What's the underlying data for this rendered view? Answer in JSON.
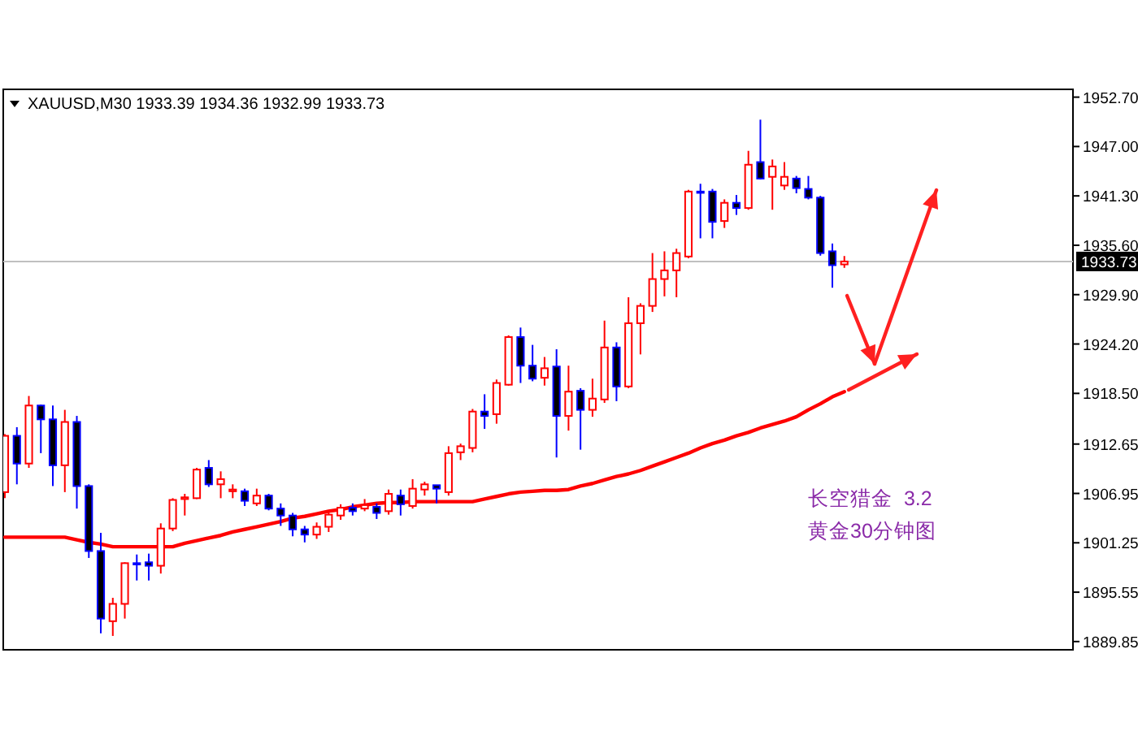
{
  "chart_data": {
    "type": "candlestick",
    "title": "XAUUSD,M30 1933.39 1934.36 1932.99 1933.73",
    "categories": [
      null,
      null,
      null,
      null,
      null,
      null,
      null,
      null,
      null,
      null,
      null,
      null,
      null,
      null,
      null,
      null,
      null,
      null,
      null,
      null,
      null,
      null,
      null,
      null,
      null,
      null,
      null,
      null,
      null,
      null,
      null,
      null,
      null,
      null,
      null,
      null,
      null,
      null,
      null,
      null,
      null,
      null,
      null,
      null,
      null,
      null,
      null,
      null,
      null,
      null,
      null,
      null,
      null,
      null,
      null,
      null,
      null,
      null,
      null,
      null,
      null,
      null,
      null,
      null,
      null,
      null,
      null,
      null,
      null,
      null,
      null
    ],
    "ohlc": [
      [
        1907.1,
        1913.8,
        1906.4,
        1913.6
      ],
      [
        1913.6,
        1914.6,
        1908.0,
        1910.4
      ],
      [
        1910.4,
        1918.2,
        1909.9,
        1917.1
      ],
      [
        1917.1,
        1917.2,
        1911.6,
        1915.5
      ],
      [
        1915.5,
        1917.1,
        1907.8,
        1910.2
      ],
      [
        1910.2,
        1916.6,
        1907.1,
        1915.2
      ],
      [
        1915.2,
        1915.9,
        1905.2,
        1907.8
      ],
      [
        1907.8,
        1908.0,
        1899.5,
        1900.3
      ],
      [
        1900.3,
        1902.4,
        1890.8,
        1892.5
      ],
      [
        1892.2,
        1894.9,
        1890.5,
        1894.2
      ],
      [
        1894.2,
        1899.0,
        1892.5,
        1898.9
      ],
      [
        1898.9,
        1899.9,
        1896.9,
        1898.8
      ],
      [
        1899.0,
        1900.0,
        1896.9,
        1898.6
      ],
      [
        1898.6,
        1903.5,
        1897.7,
        1902.9
      ],
      [
        1902.9,
        1906.4,
        1902.6,
        1906.2
      ],
      [
        1906.3,
        1906.9,
        1904.4,
        1906.5
      ],
      [
        1906.4,
        1909.9,
        1906.3,
        1909.7
      ],
      [
        1909.9,
        1910.8,
        1907.7,
        1908.0
      ],
      [
        1908.0,
        1909.5,
        1906.4,
        1908.6
      ],
      [
        1907.2,
        1908.0,
        1906.4,
        1907.4
      ],
      [
        1907.2,
        1907.5,
        1905.5,
        1906.1
      ],
      [
        1905.8,
        1907.5,
        1905.5,
        1906.7
      ],
      [
        1906.7,
        1906.9,
        1905.0,
        1905.2
      ],
      [
        1905.2,
        1905.8,
        1903.2,
        1904.4
      ],
      [
        1904.4,
        1904.7,
        1902.0,
        1902.8
      ],
      [
        1902.8,
        1903.2,
        1901.3,
        1902.2
      ],
      [
        1902.2,
        1903.6,
        1901.7,
        1903.1
      ],
      [
        1903.1,
        1904.9,
        1902.5,
        1904.5
      ],
      [
        1904.4,
        1905.7,
        1903.9,
        1905.3
      ],
      [
        1905.3,
        1905.8,
        1904.4,
        1904.9
      ],
      [
        1905.2,
        1906.3,
        1904.9,
        1905.6
      ],
      [
        1905.4,
        1905.8,
        1904.0,
        1904.7
      ],
      [
        1904.9,
        1907.4,
        1904.5,
        1906.9
      ],
      [
        1906.7,
        1907.4,
        1904.4,
        1905.7
      ],
      [
        1905.5,
        1908.6,
        1905.2,
        1907.5
      ],
      [
        1907.4,
        1908.3,
        1906.7,
        1908.0
      ],
      [
        1907.9,
        1907.9,
        1905.8,
        1907.5
      ],
      [
        1907.1,
        1912.4,
        1906.7,
        1911.6
      ],
      [
        1911.7,
        1912.7,
        1910.8,
        1912.4
      ],
      [
        1912.2,
        1916.7,
        1911.7,
        1916.4
      ],
      [
        1916.4,
        1918.4,
        1914.4,
        1915.9
      ],
      [
        1916.1,
        1920.1,
        1915.0,
        1919.7
      ],
      [
        1919.5,
        1925.2,
        1919.4,
        1925.0
      ],
      [
        1925.0,
        1926.1,
        1919.7,
        1921.7
      ],
      [
        1921.7,
        1924.1,
        1919.9,
        1920.2
      ],
      [
        1920.3,
        1922.7,
        1919.4,
        1921.4
      ],
      [
        1921.6,
        1923.6,
        1911.1,
        1915.9
      ],
      [
        1915.9,
        1921.7,
        1914.2,
        1918.7
      ],
      [
        1918.8,
        1919.1,
        1912.0,
        1916.6
      ],
      [
        1916.6,
        1920.2,
        1915.8,
        1917.9
      ],
      [
        1917.8,
        1926.9,
        1917.4,
        1923.8
      ],
      [
        1923.8,
        1924.4,
        1917.6,
        1919.3
      ],
      [
        1919.3,
        1929.6,
        1919.1,
        1926.6
      ],
      [
        1926.6,
        1928.9,
        1923.0,
        1928.6
      ],
      [
        1928.6,
        1934.7,
        1927.9,
        1931.7
      ],
      [
        1931.7,
        1934.9,
        1929.7,
        1932.7
      ],
      [
        1932.7,
        1935.2,
        1929.6,
        1934.7
      ],
      [
        1934.3,
        1942.0,
        1934.1,
        1941.8
      ],
      [
        1941.8,
        1942.7,
        1936.4,
        1941.7
      ],
      [
        1941.8,
        1942.1,
        1936.4,
        1938.3
      ],
      [
        1938.4,
        1940.9,
        1937.6,
        1940.5
      ],
      [
        1940.5,
        1941.4,
        1939.1,
        1939.9
      ],
      [
        1939.9,
        1946.5,
        1939.7,
        1944.9
      ],
      [
        1945.2,
        1950.1,
        1943.2,
        1943.3
      ],
      [
        1943.5,
        1945.5,
        1939.7,
        1944.7
      ],
      [
        1942.5,
        1945.2,
        1942.0,
        1943.5
      ],
      [
        1943.3,
        1943.6,
        1941.6,
        1942.2
      ],
      [
        1942.1,
        1943.6,
        1940.9,
        1941.1
      ],
      [
        1941.1,
        1941.3,
        1934.4,
        1934.7
      ],
      [
        1934.9,
        1935.8,
        1930.7,
        1933.3
      ],
      [
        1933.39,
        1934.36,
        1932.99,
        1933.73
      ]
    ],
    "colors": [
      "#ff0000",
      "#0000ff",
      "#ff0000",
      "#0000ff",
      "#0000ff",
      "#ff0000",
      "#0000ff",
      "#0000ff",
      "#0000ff",
      "#ff0000",
      "#ff0000",
      "#0000ff",
      "#0000ff",
      "#ff0000",
      "#ff0000",
      "#ff0000",
      "#ff0000",
      "#0000ff",
      "#ff0000",
      "#ff0000",
      "#0000ff",
      "#ff0000",
      "#0000ff",
      "#0000ff",
      "#0000ff",
      "#0000ff",
      "#ff0000",
      "#ff0000",
      "#ff0000",
      "#0000ff",
      "#ff0000",
      "#0000ff",
      "#ff0000",
      "#0000ff",
      "#ff0000",
      "#ff0000",
      "#0000ff",
      "#ff0000",
      "#ff0000",
      "#ff0000",
      "#0000ff",
      "#ff0000",
      "#ff0000",
      "#0000ff",
      "#0000ff",
      "#ff0000",
      "#0000ff",
      "#ff0000",
      "#0000ff",
      "#ff0000",
      "#ff0000",
      "#0000ff",
      "#ff0000",
      "#ff0000",
      "#ff0000",
      "#ff0000",
      "#ff0000",
      "#ff0000",
      "#0000ff",
      "#0000ff",
      "#ff0000",
      "#0000ff",
      "#ff0000",
      "#0000ff",
      "#ff0000",
      "#ff0000",
      "#0000ff",
      "#0000ff",
      "#0000ff",
      "#0000ff",
      "#ff0000"
    ],
    "series": [
      {
        "type": "line",
        "color": "#ff0000",
        "values": [
          1901.9,
          1901.9,
          1901.9,
          1901.9,
          1901.9,
          1901.9,
          1901.6,
          1901.3,
          1901.1,
          1900.8,
          1900.8,
          1900.8,
          1900.8,
          1900.8,
          1900.8,
          1901.2,
          1901.5,
          1901.8,
          1902.1,
          1902.5,
          1902.8,
          1903.1,
          1903.4,
          1903.7,
          1904.1,
          1904.3,
          1904.6,
          1904.9,
          1905.1,
          1905.4,
          1905.6,
          1905.8,
          1905.9,
          1905.9,
          1906.0,
          1906.0,
          1906.0,
          1906.0,
          1906.0,
          1906.0,
          1906.3,
          1906.6,
          1906.9,
          1907.1,
          1907.2,
          1907.3,
          1907.3,
          1907.4,
          1907.8,
          1908.1,
          1908.5,
          1908.9,
          1909.2,
          1909.6,
          1910.1,
          1910.6,
          1911.1,
          1911.6,
          1912.2,
          1912.7,
          1913.1,
          1913.6,
          1914.0,
          1914.5,
          1914.9,
          1915.3,
          1915.8,
          1916.6,
          1917.3,
          1918.1,
          1918.7
        ]
      }
    ],
    "ylim": [
      1888.9,
      1953.6
    ],
    "yticks": [
      {
        "value": 1952.7,
        "label": "1952.70"
      },
      {
        "value": 1947,
        "label": "1947.00"
      },
      {
        "value": 1941.3,
        "label": "1941.30"
      },
      {
        "value": 1935.6,
        "label": "1935.60"
      },
      {
        "value": 1929.9,
        "label": "1929.90"
      },
      {
        "value": 1924.2,
        "label": "1924.20"
      },
      {
        "value": 1918.5,
        "label": "1918.50"
      },
      {
        "value": 1912.65,
        "label": "1912.65"
      },
      {
        "value": 1906.95,
        "label": "1906.95"
      },
      {
        "value": 1901.25,
        "label": "1901.25"
      },
      {
        "value": 1895.55,
        "label": "1895.55"
      },
      {
        "value": 1889.85,
        "label": "1889.85"
      }
    ],
    "ref_lines": [
      {
        "axis": "y",
        "value": 1933.73,
        "label": "1933.73",
        "color": "#c0c0c0"
      }
    ],
    "annotations": [
      "长空猎金  3.2",
      "黄金30分钟图"
    ]
  }
}
